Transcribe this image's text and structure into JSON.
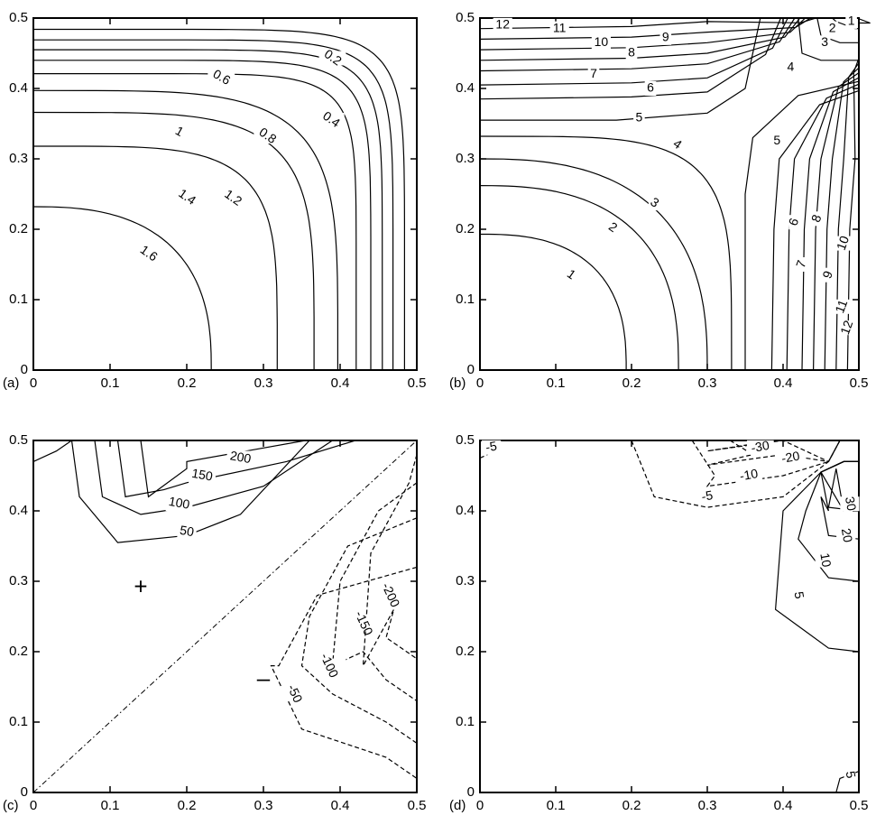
{
  "chart_data": [
    {
      "type": "contour",
      "panel_label": "(a)",
      "xlim": [
        0,
        0.5
      ],
      "ylim": [
        0,
        0.5
      ],
      "x_ticks": [
        "0",
        "0.1",
        "0.2",
        "0.3",
        "0.4",
        "0.5"
      ],
      "y_ticks": [
        "0",
        "0.1",
        "0.2",
        "0.3",
        "0.4",
        "0.5"
      ],
      "levels": [
        {
          "value": "1.6",
          "style": "solid",
          "corner_x": 0.232,
          "corner_y": 0.232,
          "label_at": [
            0.15,
            0.165
          ]
        },
        {
          "value": "1.4",
          "style": "solid",
          "corner_x": 0.318,
          "corner_y": 0.318,
          "label_at": [
            0.2,
            0.245
          ]
        },
        {
          "value": "1.2",
          "style": "solid",
          "corner_x": 0.366,
          "corner_y": 0.366,
          "label_at": [
            0.26,
            0.244
          ]
        },
        {
          "value": "1",
          "style": "solid",
          "corner_x": 0.397,
          "corner_y": 0.397
        },
        {
          "value": "0.8",
          "style": "solid",
          "corner_x": 0.421,
          "corner_y": 0.421,
          "label_at": [
            0.305,
            0.332
          ]
        },
        {
          "value": "0.6",
          "style": "solid",
          "corner_x": 0.44,
          "corner_y": 0.44
        },
        {
          "value": "0.4",
          "style": "solid",
          "corner_x": 0.455,
          "corner_y": 0.455,
          "label_at": [
            0.388,
            0.355
          ]
        },
        {
          "value": "",
          "style": "solid",
          "corner_x": 0.469,
          "corner_y": 0.469
        },
        {
          "value": "0.2",
          "style": "solid",
          "corner_x": 0.484,
          "corner_y": 0.484,
          "label_at": [
            0.39,
            0.443
          ]
        }
      ],
      "extra_labels": [
        {
          "value": "1",
          "at": [
            0.19,
            0.338
          ]
        },
        {
          "value": "0.6",
          "at": [
            0.245,
            0.415
          ]
        }
      ]
    },
    {
      "type": "contour",
      "panel_label": "(b)",
      "xlim": [
        0,
        0.5
      ],
      "ylim": [
        0,
        0.5
      ],
      "x_ticks": [
        "0",
        "0.1",
        "0.2",
        "0.3",
        "0.4",
        "0.5"
      ],
      "y_ticks": [
        "0",
        "0.1",
        "0.2",
        "0.3",
        "0.4",
        "0.5"
      ],
      "levels": [
        {
          "value": "1",
          "style": "solid",
          "corner_x": 0.193,
          "corner_y": 0.193,
          "label_at": [
            0.12,
            0.135
          ]
        },
        {
          "value": "2",
          "style": "solid",
          "corner_x": 0.262,
          "corner_y": 0.262,
          "label_at": [
            0.175,
            0.202
          ]
        },
        {
          "value": "3",
          "style": "solid",
          "corner_x": 0.3,
          "corner_y": 0.3,
          "label_at": [
            0.23,
            0.237
          ]
        },
        {
          "value": "4",
          "style": "solid",
          "corner_x": 0.332,
          "corner_y": 0.332,
          "label_at": [
            0.26,
            0.32
          ]
        }
      ],
      "saddle_curves": [
        {
          "value": "5",
          "points": [
            [
              0.35,
              0
            ],
            [
              0.35,
              0.25
            ],
            [
              0.36,
              0.33
            ],
            [
              0.42,
              0.39
            ],
            [
              0.5,
              0.41
            ]
          ],
          "label_at": [
            0.392,
            0.325
          ]
        },
        {
          "value": "5",
          "points": [
            [
              0,
              0.355
            ],
            [
              0.18,
              0.355
            ],
            [
              0.3,
              0.365
            ],
            [
              0.35,
              0.4
            ],
            [
              0.37,
              0.5
            ]
          ],
          "label_at": [
            0.21,
            0.358
          ]
        }
      ],
      "upper_left_levels": [
        {
          "value": "6",
          "y0": 0.385,
          "label_at": [
            0.225,
            0.4
          ]
        },
        {
          "value": "7",
          "y0": 0.405,
          "label_at": [
            0.15,
            0.42
          ]
        },
        {
          "value": "8",
          "y0": 0.425,
          "label_at": [
            0.2,
            0.45
          ]
        },
        {
          "value": "9",
          "y0": 0.44,
          "label_at": [
            0.245,
            0.472
          ]
        },
        {
          "value": "10",
          "y0": 0.455,
          "label_at": [
            0.16,
            0.465
          ]
        },
        {
          "value": "11",
          "y0": 0.47,
          "label_at": [
            0.105,
            0.485
          ]
        },
        {
          "value": "12",
          "y0": 0.485,
          "label_at": [
            0.03,
            0.49
          ]
        }
      ],
      "lower_right_levels": [
        {
          "value": "6",
          "x0": 0.385,
          "label_at": [
            0.415,
            0.21
          ]
        },
        {
          "value": "7",
          "x0": 0.405,
          "label_at": [
            0.425,
            0.15
          ]
        },
        {
          "value": "8",
          "x0": 0.425,
          "label_at": [
            0.445,
            0.215
          ]
        },
        {
          "value": "9",
          "x0": 0.44,
          "label_at": [
            0.46,
            0.135
          ]
        },
        {
          "value": "10",
          "x0": 0.455,
          "label_at": [
            0.48,
            0.18
          ]
        },
        {
          "value": "11",
          "x0": 0.47,
          "label_at": [
            0.478,
            0.09
          ]
        },
        {
          "value": "12",
          "x0": 0.485,
          "label_at": [
            0.485,
            0.06
          ]
        }
      ],
      "top_right_labels": [
        {
          "value": "4",
          "at": [
            0.41,
            0.43
          ]
        },
        {
          "value": "3",
          "at": [
            0.455,
            0.465
          ]
        },
        {
          "value": "2",
          "at": [
            0.465,
            0.485
          ]
        },
        {
          "value": "1",
          "at": [
            0.49,
            0.495
          ]
        }
      ]
    },
    {
      "type": "contour",
      "panel_label": "(c)",
      "xlim": [
        0,
        0.5
      ],
      "ylim": [
        0,
        0.5
      ],
      "x_ticks": [
        "0",
        "0.1",
        "0.2",
        "0.3",
        "0.4",
        "0.5"
      ],
      "y_ticks": [
        "0",
        "0.1",
        "0.2",
        "0.3",
        "0.4",
        "0.5"
      ],
      "diagonal": "dash-dot",
      "signs": [
        {
          "text": "+",
          "at": [
            0.14,
            0.29
          ]
        },
        {
          "text": "–",
          "at": [
            0.3,
            0.16
          ]
        }
      ],
      "positive_levels": [
        {
          "value": "50",
          "style": "solid",
          "label_at": [
            0.2,
            0.37
          ]
        },
        {
          "value": "100",
          "style": "solid",
          "label_at": [
            0.19,
            0.41
          ]
        },
        {
          "value": "150",
          "style": "solid",
          "label_at": [
            0.22,
            0.45
          ]
        },
        {
          "value": "200",
          "style": "solid",
          "label_at": [
            0.27,
            0.475
          ]
        }
      ],
      "negative_levels": [
        {
          "value": "-50",
          "style": "dashed",
          "label_at": [
            0.34,
            0.14
          ]
        },
        {
          "value": "-100",
          "style": "dashed",
          "label_at": [
            0.385,
            0.18
          ]
        },
        {
          "value": "-150",
          "style": "dashed",
          "label_at": [
            0.43,
            0.24
          ]
        },
        {
          "value": "-200",
          "style": "dashed",
          "label_at": [
            0.465,
            0.28
          ]
        }
      ]
    },
    {
      "type": "contour",
      "panel_label": "(d)",
      "xlim": [
        0,
        0.5
      ],
      "ylim": [
        0,
        0.5
      ],
      "x_ticks": [
        "0",
        "0.1",
        "0.2",
        "0.3",
        "0.4",
        "0.5"
      ],
      "y_ticks": [
        "0",
        "0.1",
        "0.2",
        "0.3",
        "0.4",
        "0.5"
      ],
      "negative_levels": [
        {
          "value": "-5",
          "style": "dashed",
          "label_at": [
            0.3,
            0.42
          ]
        },
        {
          "value": "-10",
          "style": "dashed",
          "label_at": [
            0.355,
            0.45
          ]
        },
        {
          "value": "-20",
          "style": "dashed",
          "label_at": [
            0.41,
            0.475
          ]
        },
        {
          "value": "-30",
          "style": "dashed",
          "label_at": [
            0.37,
            0.49
          ]
        },
        {
          "value": "-5",
          "style": "dashed",
          "label_at": [
            0.015,
            0.49
          ]
        }
      ],
      "positive_levels": [
        {
          "value": "5",
          "style": "solid",
          "label_at": [
            0.42,
            0.28
          ]
        },
        {
          "value": "10",
          "style": "solid",
          "label_at": [
            0.455,
            0.33
          ]
        },
        {
          "value": "20",
          "style": "solid",
          "label_at": [
            0.483,
            0.365
          ]
        },
        {
          "value": "30",
          "style": "solid",
          "label_at": [
            0.488,
            0.41
          ]
        },
        {
          "value": "5",
          "style": "solid",
          "label_at": [
            0.488,
            0.025
          ]
        }
      ]
    }
  ]
}
